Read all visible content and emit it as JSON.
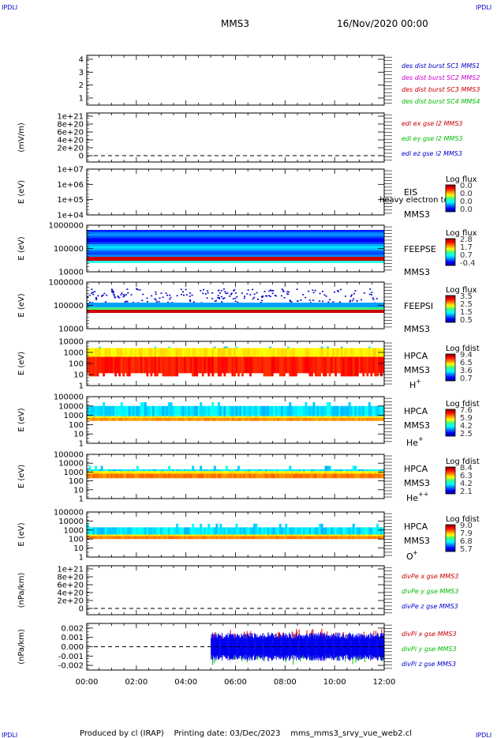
{
  "header": {
    "corner_left": "IPDLI",
    "corner_right": "IPDLI",
    "title": "MMS3",
    "date": "16/Nov/2020 00:00"
  },
  "footer": {
    "text": "Produced by cl (IRAP)    Printing date: 03/Dec/2023    mms_mms3_srvy_vue_web2.cl",
    "corner_left": "IPDLI",
    "corner_right": "IPDLI"
  },
  "chart_data": {
    "type": "heatmap",
    "x_ticks": [
      "00:00",
      "02:00",
      "04:00",
      "06:00",
      "08:00",
      "10:00",
      "12:00"
    ],
    "xlim": [
      "00:00",
      "12:00"
    ],
    "panels": [
      {
        "id": "burst",
        "type": "line",
        "ylabel": "",
        "yticks": [
          "1",
          "2",
          "3",
          "4"
        ],
        "legend": [
          {
            "text": "des dist burst SC1 MMS1",
            "color": "#0000cc"
          },
          {
            "text": "des dist burst SC2 MMS2",
            "color": "#cc00cc"
          },
          {
            "text": "des dist burst SC3 MMS3",
            "color": "#cc0000"
          },
          {
            "text": "des dist burst SC4 MMS4",
            "color": "#00bb00"
          }
        ]
      },
      {
        "id": "edi",
        "type": "line",
        "ylabel": "(mV/m)",
        "yticks": [
          "0",
          "2e+20",
          "4e+20",
          "6e+20",
          "8e+20",
          "1e+21"
        ],
        "legend": [
          {
            "text": "edi ex gse l2 MMS3",
            "color": "#cc0000"
          },
          {
            "text": "edi ey gse l2 MMS3",
            "color": "#00bb00"
          },
          {
            "text": "edi ez gse l2 MMS3",
            "color": "#0000cc"
          }
        ]
      },
      {
        "id": "eis",
        "type": "heatmap",
        "ylabel": "E (eV)",
        "yticks": [
          "1e+04",
          "1e+05",
          "1e+06",
          "1e+07"
        ],
        "instrument": [
          "EIS",
          "MMS3"
        ],
        "overlay": "heavy electron to",
        "cbar_title": "Log flux",
        "cbar_ticks": [
          "0.0",
          "0.0",
          "0.0",
          "0.0"
        ]
      },
      {
        "id": "feepse",
        "type": "heatmap",
        "ylabel": "E (eV)",
        "yticks": [
          "10000",
          "100000",
          "1000000"
        ],
        "instrument": [
          "FEEPSE",
          "MMS3"
        ],
        "cbar_title": "Log flux",
        "cbar_ticks": [
          "2.8",
          "1.7",
          "0.7",
          "-0.4"
        ]
      },
      {
        "id": "feepsi",
        "type": "heatmap",
        "ylabel": "E (eV)",
        "yticks": [
          "10000",
          "100000",
          "1000000"
        ],
        "instrument": [
          "FEEPSI",
          "MMS3"
        ],
        "cbar_title": "Log flux",
        "cbar_ticks": [
          "3.5",
          "2.5",
          "1.5",
          "0.5"
        ]
      },
      {
        "id": "hpca_h",
        "type": "heatmap",
        "ylabel": "E (eV)",
        "yticks": [
          "1",
          "10",
          "100",
          "1000",
          "10000"
        ],
        "instrument": [
          "HPCA",
          "MMS3"
        ],
        "species": "H",
        "species_sup": "+",
        "cbar_title": "Log fdist",
        "cbar_ticks": [
          "9.4",
          "6.5",
          "3.6",
          "0.7"
        ]
      },
      {
        "id": "hpca_he1",
        "type": "heatmap",
        "ylabel": "E (eV)",
        "yticks": [
          "1",
          "10",
          "100",
          "1000",
          "10000",
          "100000"
        ],
        "instrument": [
          "HPCA",
          "MMS3"
        ],
        "species": "He",
        "species_sup": "+",
        "cbar_title": "Log fdist",
        "cbar_ticks": [
          "7.6",
          "5.9",
          "4.2",
          "2.5"
        ]
      },
      {
        "id": "hpca_he2",
        "type": "heatmap",
        "ylabel": "E (eV)",
        "yticks": [
          "1",
          "10",
          "100",
          "1000",
          "10000",
          "100000"
        ],
        "instrument": [
          "HPCA",
          "MMS3"
        ],
        "species": "He",
        "species_sup": "++",
        "cbar_title": "Log fdist",
        "cbar_ticks": [
          "8.4",
          "6.3",
          "4.2",
          "2.1"
        ]
      },
      {
        "id": "hpca_o",
        "type": "heatmap",
        "ylabel": "E (eV)",
        "yticks": [
          "1",
          "10",
          "100",
          "1000",
          "10000",
          "100000"
        ],
        "instrument": [
          "HPCA",
          "MMS3"
        ],
        "species": "O",
        "species_sup": "+",
        "cbar_title": "Log fdist",
        "cbar_ticks": [
          "9.0",
          "7.9",
          "6.8",
          "5.7"
        ]
      },
      {
        "id": "divpe",
        "type": "line",
        "ylabel": "(nPa/km)",
        "yticks": [
          "0",
          "2e+20",
          "4e+20",
          "6e+20",
          "8e+20",
          "1e+21"
        ],
        "legend": [
          {
            "text": "divPe x gse MMS3",
            "color": "#cc0000"
          },
          {
            "text": "divPe y gse MMS3",
            "color": "#00bb00"
          },
          {
            "text": "divPe z gse MMS3",
            "color": "#0000cc"
          }
        ]
      },
      {
        "id": "divpi",
        "type": "line",
        "ylabel": "(nPa/km)",
        "yticks": [
          "-0.002",
          "-0.001",
          "0.000",
          "0.001",
          "0.002"
        ],
        "ylim": [
          -0.0025,
          0.0025
        ],
        "legend": [
          {
            "text": "divPi x gse MMS3",
            "color": "#cc0000"
          },
          {
            "text": "divPi y gse MMS3",
            "color": "#00bb00"
          },
          {
            "text": "divPi z gse MMS3",
            "color": "#0000cc"
          }
        ]
      }
    ]
  }
}
